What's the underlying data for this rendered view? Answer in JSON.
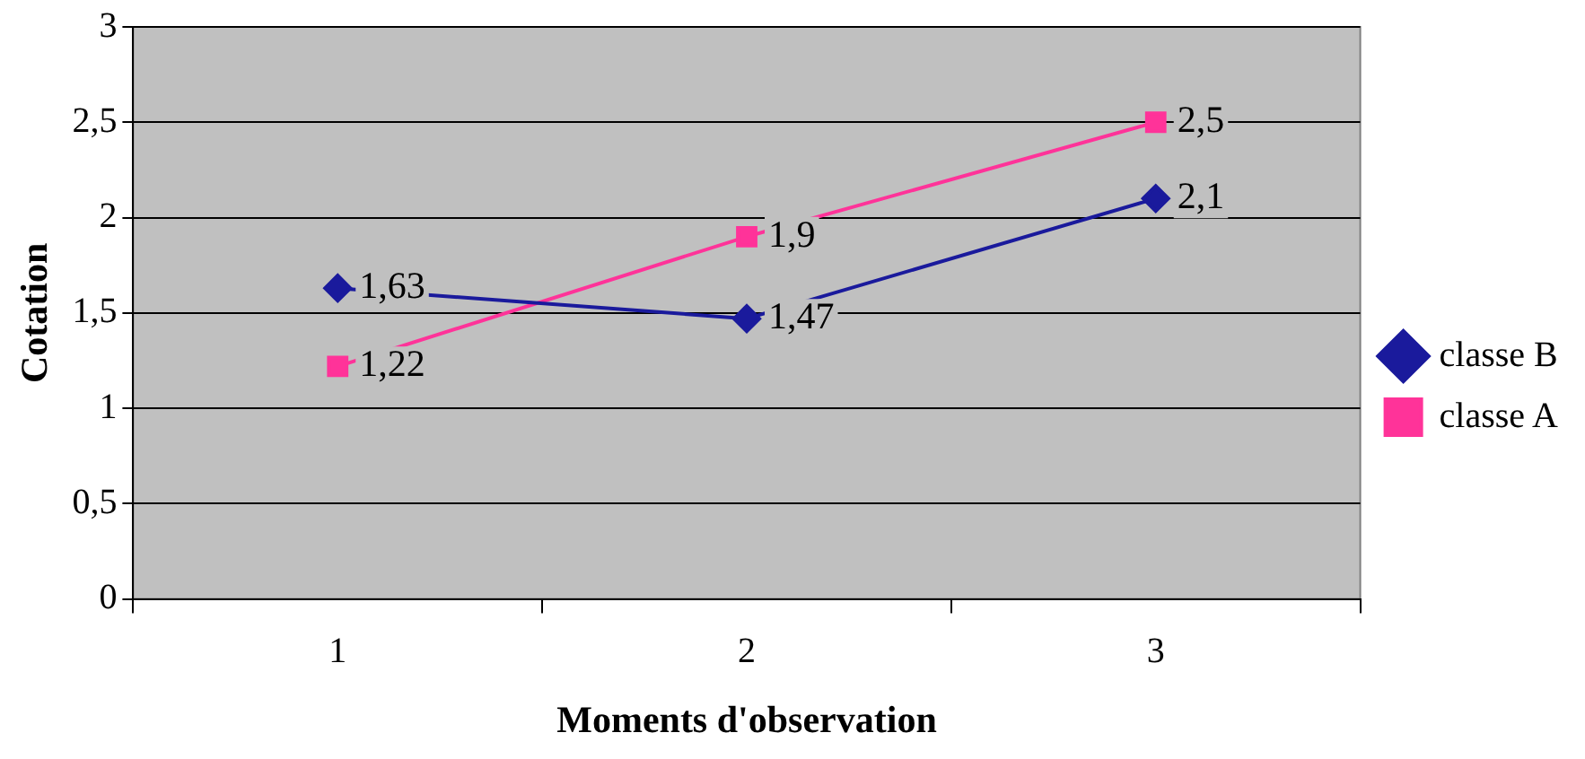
{
  "chart_data": {
    "type": "line",
    "xlabel": "Moments d'observation",
    "ylabel": "Cotation",
    "categories": [
      "1",
      "2",
      "3"
    ],
    "series": [
      {
        "name": "classe B",
        "color": "#1a1a9c",
        "marker": "diamond",
        "values": [
          1.63,
          1.47,
          2.1
        ],
        "value_labels": [
          "1,63",
          "1,47",
          "2,1"
        ]
      },
      {
        "name": "classe A",
        "color": "#ff3399",
        "marker": "square",
        "values": [
          1.22,
          1.9,
          2.5
        ],
        "value_labels": [
          "1,22",
          "1,9",
          "2,5"
        ]
      }
    ],
    "ylim": [
      0,
      3
    ],
    "yticks": [
      0,
      {
        "value": 0.5,
        "label": "0,5"
      },
      1,
      {
        "value": 1.5,
        "label": "1,5"
      },
      2,
      {
        "value": 2.5,
        "label": "2,5"
      },
      3
    ],
    "grid": "y",
    "legend": "right",
    "line_style": "solid"
  }
}
